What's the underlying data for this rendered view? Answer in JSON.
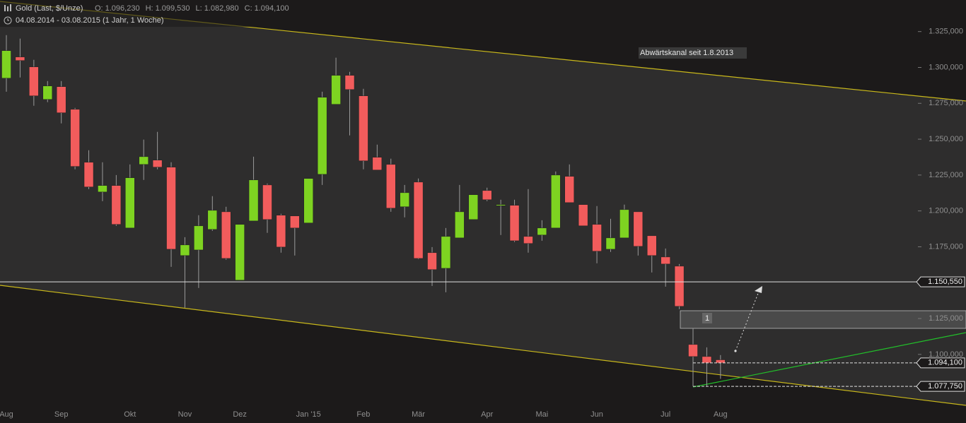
{
  "chart_data": {
    "type": "candlestick",
    "title": "Gold (Last, $/Unze)",
    "subtitle": "04.08.2014 - 03.08.2015 (1 Jahr, 1 Woche)",
    "header_values": [
      {
        "name": "O:",
        "value": 1096.23,
        "label": "1.096,230"
      },
      {
        "name": "H:",
        "value": 1099.53,
        "label": "1.099,530"
      },
      {
        "name": "L:",
        "value": 1082.98,
        "label": "1.082,980"
      },
      {
        "name": "C:",
        "value": 1094.1,
        "label": "1.094,100"
      }
    ],
    "categories": [
      "Aug",
      null,
      null,
      null,
      "Sep",
      null,
      null,
      null,
      null,
      "Okt",
      null,
      null,
      null,
      "Nov",
      null,
      null,
      null,
      "Dez",
      null,
      null,
      null,
      null,
      "Jan '15",
      null,
      null,
      null,
      "Feb",
      null,
      null,
      null,
      "Mär",
      null,
      null,
      null,
      null,
      "Apr",
      null,
      null,
      null,
      "Mai",
      null,
      null,
      null,
      "Jun",
      null,
      null,
      null,
      null,
      "Jul",
      null,
      null,
      null,
      "Aug"
    ],
    "open": [
      1292.5,
      1307.3,
      1300.4,
      1277.7,
      1286.6,
      1270.8,
      1233.9,
      1213.2,
      1217.7,
      1188.1,
      1232.4,
      1235.4,
      1230.5,
      1168.9,
      1172.8,
      1187.1,
      1199.4,
      1151.7,
      1193,
      1218.1,
      1197,
      1196.5,
      1191.6,
      1225.5,
      1274.3,
      1294.5,
      1280.2,
      1237.4,
      1232.4,
      1202.9,
      1220.1,
      1170.9,
      1160,
      1181.2,
      1194,
      1214.2,
      1203.9,
      1203.9,
      1182.2,
      1183.2,
      1188.1,
      1224.1,
      1204.4,
      1190.6,
      1173.3,
      1181.2,
      1199.4,
      1182.7,
      1167.9,
      1161.5,
      1106.9,
      1098.5,
      1096.23
    ],
    "high": [
      1322.5,
      1320.1,
      1305.3,
      1290.5,
      1290.5,
      1271.8,
      1242.3,
      1233.9,
      1225,
      1232.4,
      1249.7,
      1255.1,
      1233.9,
      1181.7,
      1197,
      1210.3,
      1202.9,
      1190.6,
      1237.8,
      1219.1,
      1198,
      1196.5,
      1222.6,
      1283.1,
      1306.8,
      1296.9,
      1285.1,
      1246.2,
      1236.4,
      1218.1,
      1222.6,
      1174.8,
      1188.1,
      1218.1,
      1211.3,
      1216.2,
      1207.8,
      1207.8,
      1215.2,
      1193.5,
      1227.5,
      1232.4,
      1204.4,
      1203.4,
      1194.5,
      1204.4,
      1199.4,
      1182.7,
      1173.8,
      1163,
      1118.2,
      1104.9,
      1099.53
    ],
    "low": [
      1283.1,
      1293,
      1273.3,
      1275.8,
      1261,
      1229,
      1215.2,
      1206.8,
      1189.6,
      1188.1,
      1221.6,
      1229,
      1161,
      1132.5,
      1146.3,
      1186.1,
      1166,
      1151.7,
      1193,
      1184.7,
      1170.9,
      1168.9,
      1191.6,
      1218.1,
      1274.3,
      1252.6,
      1229,
      1228.5,
      1199.4,
      1195.5,
      1166.4,
      1147.7,
      1143.3,
      1181.2,
      1194,
      1206.8,
      1183.2,
      1178.3,
      1170.9,
      1179.2,
      1188.1,
      1205.8,
      1189.6,
      1163.5,
      1171.4,
      1181.2,
      1168.9,
      1157.1,
      1147.2,
      1131.5,
      1077.75,
      1078,
      1082.98
    ],
    "close": [
      1311.7,
      1304.8,
      1280.2,
      1287.1,
      1268.4,
      1231,
      1216.7,
      1217.7,
      1190.6,
      1223.1,
      1237.8,
      1230.5,
      1173.3,
      1176.3,
      1189.6,
      1200.4,
      1166.9,
      1190.6,
      1221.6,
      1194,
      1174.8,
      1188.1,
      1222.6,
      1279.2,
      1294.5,
      1284.6,
      1234.9,
      1228.5,
      1201.9,
      1212.7,
      1166.9,
      1159.1,
      1182.2,
      1199.4,
      1211.3,
      1207.8,
      1204.4,
      1179.2,
      1177.3,
      1188.1,
      1225,
      1205.8,
      1189.6,
      1171.9,
      1181.2,
      1200.9,
      1175.3,
      1168.9,
      1163,
      1133.5,
      1098.5,
      1094.1,
      1094.1
    ],
    "up_color": "#7ed321",
    "down_color": "#f25c5c",
    "ylim": [
      1064,
      1347
    ],
    "yticks": [
      {
        "value": 1100,
        "label": "1.100,000"
      },
      {
        "value": 1125,
        "label": "1.125,000"
      },
      {
        "value": 1150,
        "label": "1.150,000"
      },
      {
        "value": 1175,
        "label": "1.175,000"
      },
      {
        "value": 1200,
        "label": "1.200,000"
      },
      {
        "value": 1225,
        "label": "1.225,000"
      },
      {
        "value": 1250,
        "label": "1.250,000"
      },
      {
        "value": 1275,
        "label": "1.275,000"
      },
      {
        "value": 1300,
        "label": "1.300,000"
      },
      {
        "value": 1325,
        "label": "1.325,000"
      }
    ],
    "price_labels": [
      {
        "value": 1150.55,
        "label": "1.150,550",
        "line": "solid"
      },
      {
        "value": 1094.1,
        "label": "1.094,100",
        "line": "dashed"
      },
      {
        "value": 1077.75,
        "label": "1.077,750",
        "line": "dashed"
      }
    ],
    "annotations": [
      "Abwärtskanal seit 1.8.2013",
      "1"
    ]
  }
}
